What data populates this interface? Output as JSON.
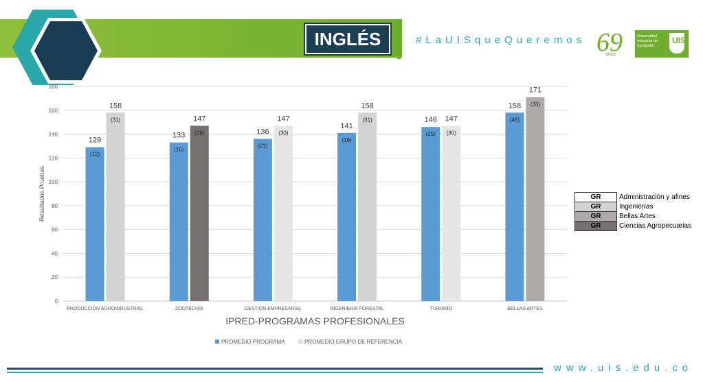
{
  "header": {
    "title": "INGLÉS",
    "hashtag": "#LaUISqueQueremos",
    "anniversary": "69",
    "anniversary_sub": "años",
    "university_name": "Universidad Industrial de Santander",
    "logo_letters": "UIS"
  },
  "legend_groups": [
    {
      "code": "GR",
      "label": "Administración y afines",
      "color": "#ffffff"
    },
    {
      "code": "GR",
      "label": "Ingenierías",
      "color": "#d3d3d3"
    },
    {
      "code": "GR",
      "label": "Bellas Artes",
      "color": "#aeaaaa"
    },
    {
      "code": "GR",
      "label": "Ciencias Agropecuarias",
      "color": "#767171"
    }
  ],
  "footer": {
    "url": "www.uis.edu.co"
  },
  "colors": {
    "program": "#5b9bd5",
    "green": "#6fae2e",
    "teal": "#2aa7a8",
    "navy": "#1c3e52"
  },
  "chart_data": {
    "type": "bar",
    "title": "",
    "xlabel": "IPRED-PROGRAMAS PROFESIONALES",
    "ylabel": "Resultados Pruebas",
    "ylim": [
      0,
      180
    ],
    "yticks": [
      0,
      20,
      40,
      60,
      80,
      100,
      120,
      140,
      160,
      180
    ],
    "grid": true,
    "legend_position": "bottom",
    "categories": [
      "PRODUCCION AGROINDUSTRIAL",
      "ZOOTECNIA",
      "GESTION EMPRESARIAL",
      "INGENIERIA FORESTAL",
      "TURISMO",
      "BELLAS ARTES"
    ],
    "series": [
      {
        "name": "PROMEDIO PROGRAMA",
        "color": "#5b9bd5",
        "values": [
          129,
          133,
          136,
          141,
          146,
          158
        ],
        "counts": [
          "(12)",
          "(15)",
          "(21)",
          "(19)",
          "(25)",
          "(46)"
        ]
      },
      {
        "name": "PROMEDIO GRUPO DE REFERENCIA",
        "color": "#e0e0e0",
        "values": [
          158,
          147,
          147,
          158,
          147,
          171
        ],
        "counts": [
          "(31)",
          "(29)",
          "(30)",
          "(31)",
          "(30)",
          "(33)"
        ],
        "bar_colors": [
          "#d3d3d3",
          "#767171",
          "#e7e6e6",
          "#d3d3d3",
          "#e7e6e6",
          "#aeaaaa"
        ]
      }
    ]
  }
}
